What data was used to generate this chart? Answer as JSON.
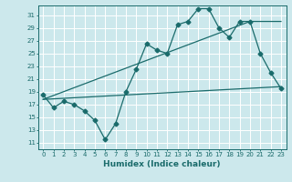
{
  "xlabel": "Humidex (Indice chaleur)",
  "bg_color": "#cce8ec",
  "line_color": "#1a6b6b",
  "grid_color": "#ffffff",
  "xlim": [
    -0.5,
    23.5
  ],
  "ylim": [
    10.0,
    32.5
  ],
  "yticks": [
    11,
    13,
    15,
    17,
    19,
    21,
    23,
    25,
    27,
    29,
    31
  ],
  "xticks": [
    0,
    1,
    2,
    3,
    4,
    5,
    6,
    7,
    8,
    9,
    10,
    11,
    12,
    13,
    14,
    15,
    16,
    17,
    18,
    19,
    20,
    21,
    22,
    23
  ],
  "main_line_x": [
    0,
    1,
    2,
    3,
    4,
    5,
    6,
    7,
    8,
    9,
    10,
    11,
    12,
    13,
    14,
    15,
    16,
    17,
    18,
    19,
    20,
    21,
    22,
    23
  ],
  "main_line_y": [
    18.5,
    16.5,
    17.5,
    17.0,
    16.0,
    14.5,
    11.5,
    14.0,
    19.0,
    22.5,
    26.5,
    25.5,
    25.0,
    29.5,
    30.0,
    32.0,
    32.0,
    29.0,
    27.5,
    30.0,
    30.0,
    25.0,
    22.0,
    19.5
  ],
  "trend1_x": [
    0,
    23
  ],
  "trend1_y": [
    17.8,
    19.8
  ],
  "trend2_x": [
    0,
    20,
    23
  ],
  "trend2_y": [
    17.8,
    30.0,
    30.0
  ],
  "xlabel_fontsize": 6.5,
  "tick_fontsize": 5.0,
  "marker_size": 2.5,
  "linewidth": 0.9
}
